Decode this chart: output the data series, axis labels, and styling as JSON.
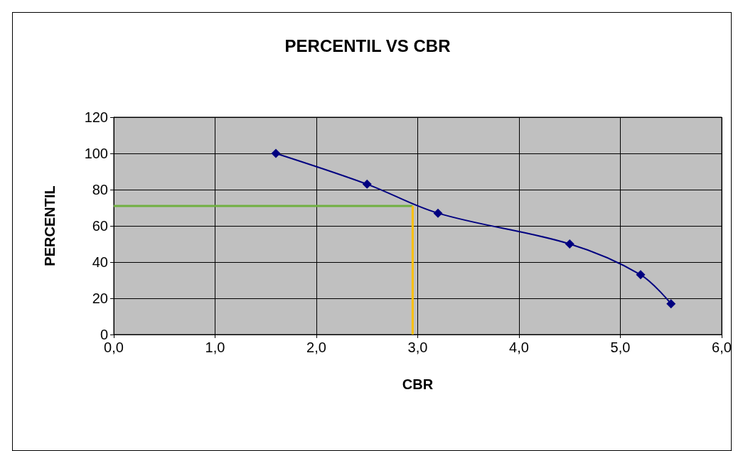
{
  "chart_data": {
    "type": "line",
    "title": "PERCENTIL VS CBR",
    "xlabel": "CBR",
    "ylabel": "PERCENTIL",
    "series": [
      {
        "color": "#000080",
        "x": [
          1.6,
          2.5,
          3.2,
          4.5,
          5.2,
          5.5
        ],
        "values": [
          100,
          83,
          67,
          50,
          33,
          17
        ],
        "marker": "diamond"
      },
      {
        "color": "#70b040",
        "x": [
          0,
          2.95
        ],
        "values": [
          71,
          71
        ],
        "marker": "none"
      },
      {
        "color": "#ffc000",
        "x": [
          2.95,
          2.95
        ],
        "values": [
          0,
          71
        ],
        "marker": "none"
      }
    ],
    "xlim": [
      0,
      6
    ],
    "xticks": [
      {
        "value": 0,
        "label": "0,0"
      },
      {
        "value": 1,
        "label": "1,0"
      },
      {
        "value": 2,
        "label": "2,0"
      },
      {
        "value": 3,
        "label": "3,0"
      },
      {
        "value": 4,
        "label": "4,0"
      },
      {
        "value": 5,
        "label": "5,0"
      },
      {
        "value": 6,
        "label": "6,0"
      }
    ],
    "ylim": [
      0,
      120
    ],
    "yticks": [
      0,
      20,
      40,
      60,
      80,
      100,
      120
    ],
    "grid": true
  }
}
